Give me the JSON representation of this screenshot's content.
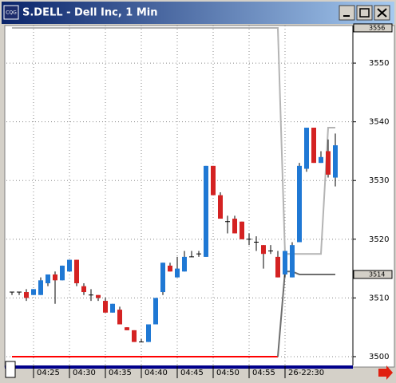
{
  "window_title": "S.DELL - Dell Inc, 1 Min",
  "app_icon": "CQG",
  "chart_data": {
    "type": "candlestick",
    "categories": [
      null,
      null,
      null,
      "04:25",
      null,
      null,
      null,
      null,
      "04:30",
      null,
      null,
      null,
      null,
      "04:35",
      null,
      null,
      null,
      null,
      "04:40",
      null,
      null,
      null,
      null,
      "04:45",
      null,
      null,
      null,
      null,
      "04:50",
      null,
      null,
      null,
      null,
      "04:55",
      null,
      null,
      null,
      null,
      "26-22:30",
      null,
      null,
      null,
      null,
      null,
      null,
      null
    ],
    "open": [
      3511,
      3511,
      3511,
      3510.5,
      3510.5,
      3512.5,
      3514,
      3513,
      3514.5,
      3516.5,
      3512,
      3510.5,
      3510.5,
      3509.5,
      3507.5,
      3508,
      3505,
      3504.5,
      3502.5,
      3502.5,
      3505.5,
      3511,
      3515.5,
      3513.5,
      3514.5,
      3517,
      3517.5,
      3517,
      3532.5,
      3527.5,
      3523,
      3523.5,
      3523,
      3520,
      3519.5,
      3519,
      3518,
      3517,
      3514,
      3513.5,
      3519.5,
      3532,
      3539,
      3533,
      3535,
      3530.5
    ],
    "high": [
      3511,
      3511,
      3511.5,
      3511.5,
      3513.5,
      3514,
      3514.5,
      3515.5,
      3516.5,
      3516.5,
      3512.5,
      3511.5,
      3510.5,
      3510,
      3509,
      3508.5,
      3505,
      3504.5,
      3503,
      3505.5,
      3510,
      3516,
      3516,
      3517,
      3518,
      3518,
      3518,
      3532.5,
      3532.5,
      3528,
      3524,
      3524,
      3523,
      3521,
      3520.5,
      3519,
      3519,
      3518,
      3518,
      3519.5,
      3533,
      3539,
      3539,
      3535,
      3537,
      3538
    ],
    "low": [
      3510.5,
      3510.5,
      3509.5,
      3510.5,
      3510.5,
      3512,
      3509,
      3513,
      3514.5,
      3512,
      3510.5,
      3509.5,
      3509.5,
      3507.5,
      3507.5,
      3505.5,
      3504.5,
      3502.5,
      3502.5,
      3502.5,
      3505.5,
      3510.5,
      3514.5,
      3513.5,
      3514.5,
      3517,
      3517,
      3517,
      3527.5,
      3523.5,
      3521,
      3521,
      3520,
      3519,
      3518,
      3515,
      3517.5,
      3513.5,
      3513.5,
      3513.5,
      3519.5,
      3531.5,
      3533,
      3533,
      3530.5,
      3529
    ],
    "close": [
      3511,
      3511,
      3510,
      3511.5,
      3513,
      3514,
      3513,
      3515.5,
      3516.5,
      3512.5,
      3511,
      3510.5,
      3510,
      3507.5,
      3509,
      3505.5,
      3504.5,
      3502.5,
      3502.5,
      3505.5,
      3510,
      3516,
      3514.5,
      3515,
      3517,
      3517,
      3517.5,
      3532.5,
      3527.5,
      3523.5,
      3523,
      3521,
      3520,
      3520,
      3519.5,
      3517.5,
      3518,
      3513.5,
      3518,
      3519,
      3532.5,
      3539,
      3533,
      3534,
      3531,
      3536
    ],
    "up_color": "#1f78d4",
    "down_color": "#d42222",
    "flat_color": "#000000",
    "lines": [
      {
        "color": "#b4b4b4",
        "values": [
          3556,
          3556,
          3556,
          3556,
          3556,
          3556,
          3556,
          3556,
          3556,
          3556,
          3556,
          3556,
          3556,
          3556,
          3556,
          3556,
          3556,
          3556,
          3556,
          3556,
          3556,
          3556,
          3556,
          3556,
          3556,
          3556,
          3556,
          3556,
          3556,
          3556,
          3556,
          3556,
          3556,
          3556,
          3556,
          3556,
          3556,
          3556,
          3517.5,
          3517.5,
          3517.5,
          3517.5,
          3517.5,
          3517.5,
          3539,
          3539
        ]
      },
      {
        "color": "#ff0000",
        "values": [
          3500,
          3500,
          3500,
          3500,
          3500,
          3500,
          3500,
          3500,
          3500,
          3500,
          3500,
          3500,
          3500,
          3500,
          3500,
          3500,
          3500,
          3500,
          3500,
          3500,
          3500,
          3500,
          3500,
          3500,
          3500,
          3500,
          3500,
          3500,
          3500,
          3500,
          3500,
          3500,
          3500,
          3500,
          3500,
          3500,
          3500,
          3500,
          null,
          null,
          null,
          null,
          null,
          null,
          null,
          null
        ]
      },
      {
        "color": "#6e6e6e",
        "values": [
          null,
          null,
          null,
          null,
          null,
          null,
          null,
          null,
          null,
          null,
          null,
          null,
          null,
          null,
          null,
          null,
          null,
          null,
          null,
          null,
          null,
          null,
          null,
          null,
          null,
          null,
          null,
          null,
          null,
          null,
          null,
          null,
          null,
          null,
          null,
          null,
          null,
          3500,
          3514.5,
          3514.5,
          3514,
          3514,
          3514,
          3514,
          3514,
          3514
        ]
      }
    ],
    "ylim": [
      3498.5,
      3556.4
    ],
    "yticks": [
      3500,
      3510,
      3520,
      3530,
      3540,
      3550
    ],
    "markers": [
      3556,
      3514
    ],
    "grid": true
  }
}
